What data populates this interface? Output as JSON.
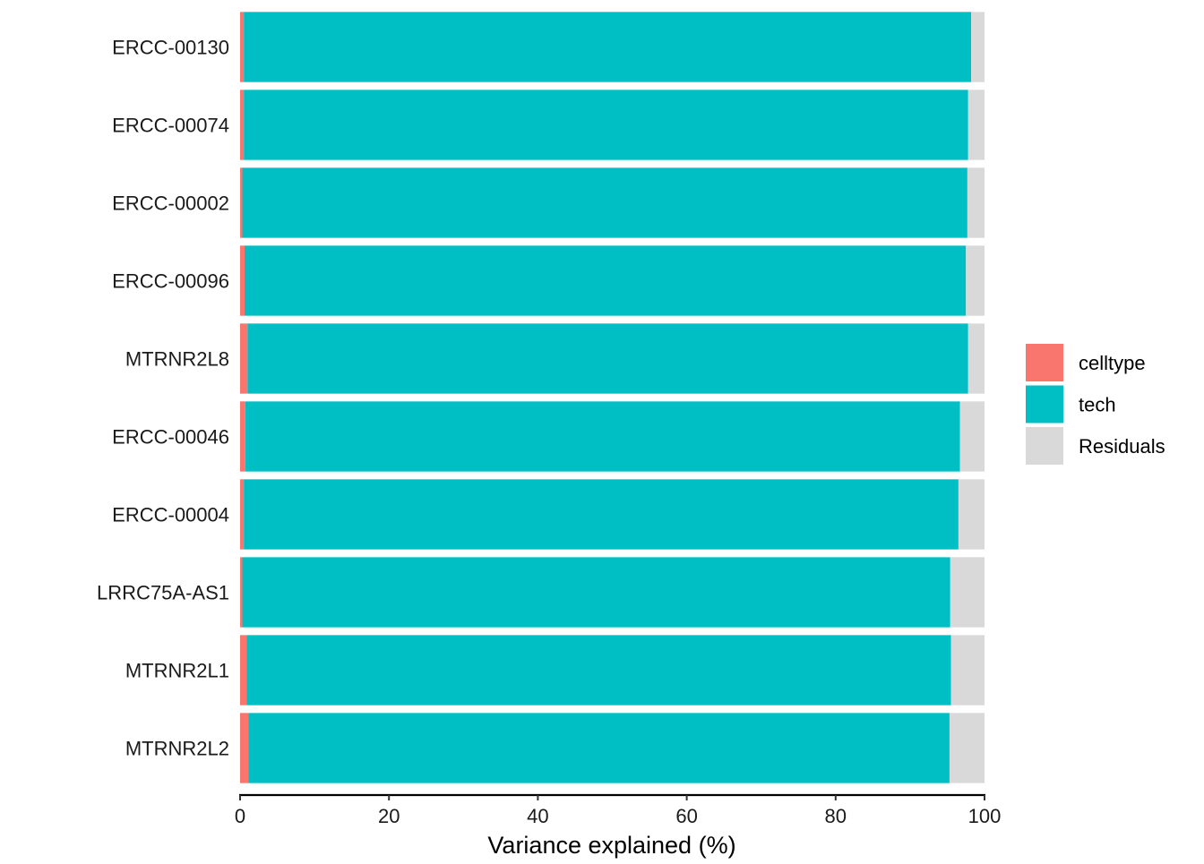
{
  "chart_data": {
    "type": "bar",
    "orientation": "horizontal",
    "stacked": true,
    "categories": [
      "ERCC-00130",
      "ERCC-00074",
      "ERCC-00002",
      "ERCC-00096",
      "MTRNR2L8",
      "ERCC-00046",
      "ERCC-00004",
      "LRRC75A-AS1",
      "MTRNR2L1",
      "MTRNR2L2"
    ],
    "series": [
      {
        "name": "celltype",
        "color": "#F8766D",
        "values": [
          0.5,
          0.5,
          0.3,
          0.6,
          1.0,
          0.7,
          0.5,
          0.3,
          0.9,
          1.1
        ]
      },
      {
        "name": "tech",
        "color": "#00BFC4",
        "values": [
          97.7,
          97.3,
          97.4,
          96.9,
          96.8,
          96.0,
          96.0,
          95.1,
          94.6,
          94.2
        ]
      },
      {
        "name": "Residuals",
        "color": "#D9D9D9",
        "values": [
          1.8,
          2.2,
          2.3,
          2.5,
          2.2,
          3.3,
          3.5,
          4.6,
          4.5,
          4.7
        ]
      }
    ],
    "xlabel": "Variance explained (%)",
    "ylabel": "",
    "title": "",
    "xlim": [
      0,
      100
    ],
    "xticks": [
      "0",
      "20",
      "40",
      "60",
      "80",
      "100"
    ],
    "grid": false,
    "legend_position": "right"
  }
}
